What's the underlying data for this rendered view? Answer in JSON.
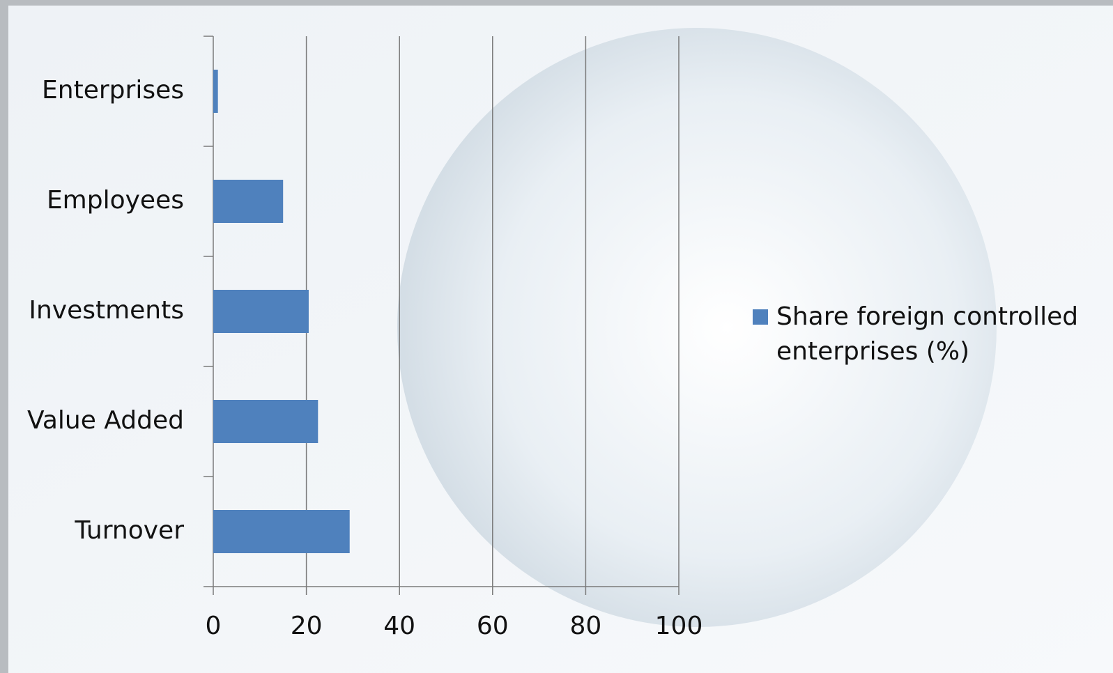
{
  "chart_data": {
    "type": "bar",
    "orientation": "horizontal",
    "categories": [
      "Enterprises",
      "Employees",
      "Investments",
      "Value Added",
      "Turnover"
    ],
    "series": [
      {
        "name": "Share foreign controlled enterprises (%)",
        "color": "#4f81bd",
        "values": [
          1,
          15,
          20.5,
          22.5,
          29.3
        ]
      }
    ],
    "xlim": [
      0,
      100
    ],
    "xticks": [
      0,
      20,
      40,
      60,
      80,
      100
    ],
    "grid": true,
    "legend": "right"
  }
}
